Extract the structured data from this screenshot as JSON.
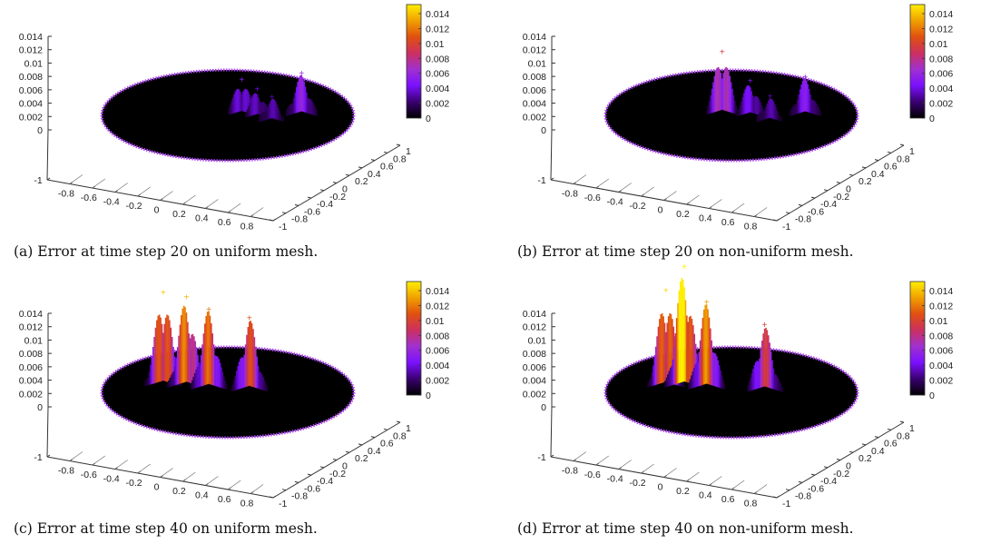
{
  "chart_data": [
    {
      "type": "surface",
      "caption": "(a) Error at time step 20 on uniform mesh.",
      "z_ticks": [
        "0.014",
        "0.012",
        "0.01",
        "0.008",
        "0.006",
        "0.004",
        "0.002",
        "0"
      ],
      "colorbar_ticks": [
        "0.014",
        "0.012",
        "0.01",
        "0.008",
        "0.006",
        "0.004",
        "0.002",
        "0"
      ],
      "x_ticks": [
        "-1",
        "-0.8",
        "-0.6",
        "-0.4",
        "-0.2",
        "0",
        "0.2",
        "0.4",
        "0.6",
        "0.8",
        "1"
      ],
      "y_ticks": [
        "-1",
        "-0.8",
        "-0.6",
        "-0.4",
        "-0.2",
        "0",
        "0.2",
        "0.4",
        "0.6",
        "0.8",
        "1"
      ],
      "zlim": [
        0,
        0.014
      ],
      "xlim": [
        -1,
        1
      ],
      "ylim": [
        -1,
        1
      ],
      "colormap": [
        "#000000",
        "#3a0070",
        "#7a10ff",
        "#a030d0",
        "#cc3060",
        "#e05010",
        "#f0a000",
        "#ffee00"
      ],
      "peaks": [
        {
          "x": 0.05,
          "y": 0.45,
          "z": 0.0045
        },
        {
          "x": 0.2,
          "y": 0.35,
          "z": 0.0035
        },
        {
          "x": 0.55,
          "y": 0.55,
          "z": 0.0055
        },
        {
          "x": 0.35,
          "y": 0.2,
          "z": 0.003
        }
      ]
    },
    {
      "type": "surface",
      "caption": "(b) Error at time step 20 on non-uniform mesh.",
      "z_ticks": [
        "0.014",
        "0.012",
        "0.01",
        "0.008",
        "0.006",
        "0.004",
        "0.002",
        "0"
      ],
      "colorbar_ticks": [
        "0.014",
        "0.012",
        "0.01",
        "0.008",
        "0.006",
        "0.004",
        "0.002",
        "0"
      ],
      "x_ticks": [
        "-1",
        "-0.8",
        "-0.6",
        "-0.4",
        "-0.2",
        "0",
        "0.2",
        "0.4",
        "0.6",
        "0.8",
        "1"
      ],
      "y_ticks": [
        "-1",
        "-0.8",
        "-0.6",
        "-0.4",
        "-0.2",
        "0",
        "0.2",
        "0.4",
        "0.6",
        "0.8",
        "1"
      ],
      "zlim": [
        0,
        0.014
      ],
      "xlim": [
        -1,
        1
      ],
      "ylim": [
        -1,
        1
      ],
      "colormap": [
        "#000000",
        "#3a0070",
        "#7a10ff",
        "#a030d0",
        "#cc3060",
        "#e05010",
        "#f0a000",
        "#ffee00"
      ],
      "peaks": [
        {
          "x": -0.15,
          "y": 0.45,
          "z": 0.0085
        },
        {
          "x": 0.1,
          "y": 0.4,
          "z": 0.0045
        },
        {
          "x": 0.55,
          "y": 0.55,
          "z": 0.005
        },
        {
          "x": 0.3,
          "y": 0.2,
          "z": 0.003
        }
      ]
    },
    {
      "type": "surface",
      "caption": "(c) Error at time step 40 on uniform mesh.",
      "z_ticks": [
        "0.014",
        "0.012",
        "0.01",
        "0.008",
        "0.006",
        "0.004",
        "0.002",
        "0"
      ],
      "colorbar_ticks": [
        "0.014",
        "0.012",
        "0.01",
        "0.008",
        "0.006",
        "0.004",
        "0.002",
        "0"
      ],
      "x_ticks": [
        "-1",
        "-0.8",
        "-0.6",
        "-0.4",
        "-0.2",
        "0",
        "0.2",
        "0.4",
        "0.6",
        "0.8",
        "1"
      ],
      "y_ticks": [
        "-1",
        "-0.8",
        "-0.6",
        "-0.4",
        "-0.2",
        "0",
        "0.2",
        "0.4",
        "0.6",
        "0.8",
        "1"
      ],
      "zlim": [
        0,
        0.014
      ],
      "xlim": [
        -1,
        1
      ],
      "ylim": [
        -1,
        1
      ],
      "colormap": [
        "#000000",
        "#3a0070",
        "#7a10ff",
        "#a030d0",
        "#cc3060",
        "#e05010",
        "#f0a000",
        "#ffee00"
      ],
      "peaks": [
        {
          "x": -0.65,
          "y": 0.6,
          "z": 0.013
        },
        {
          "x": -0.45,
          "y": 0.6,
          "z": 0.0125
        },
        {
          "x": -0.25,
          "y": 0.55,
          "z": 0.011
        },
        {
          "x": 0.1,
          "y": 0.55,
          "z": 0.01
        }
      ]
    },
    {
      "type": "surface",
      "caption": "(d) Error at time step 40 on non-uniform mesh.",
      "z_ticks": [
        "0.014",
        "0.012",
        "0.01",
        "0.008",
        "0.006",
        "0.004",
        "0.002",
        "0"
      ],
      "colorbar_ticks": [
        "0.014",
        "0.012",
        "0.01",
        "0.008",
        "0.006",
        "0.004",
        "0.002",
        "0"
      ],
      "x_ticks": [
        "-1",
        "-0.8",
        "-0.6",
        "-0.4",
        "-0.2",
        "0",
        "0.2",
        "0.4",
        "0.6",
        "0.8",
        "1"
      ],
      "y_ticks": [
        "-1",
        "-0.8",
        "-0.6",
        "-0.4",
        "-0.2",
        "0",
        "0.2",
        "0.4",
        "0.6",
        "0.8",
        "1"
      ],
      "zlim": [
        0,
        0.014
      ],
      "xlim": [
        -1,
        1
      ],
      "ylim": [
        -1,
        1
      ],
      "colormap": [
        "#000000",
        "#3a0070",
        "#7a10ff",
        "#a030d0",
        "#cc3060",
        "#e05010",
        "#f0a000",
        "#ffee00"
      ],
      "peaks": [
        {
          "x": -0.65,
          "y": 0.55,
          "z": 0.0135
        },
        {
          "x": -0.5,
          "y": 0.6,
          "z": 0.017
        },
        {
          "x": -0.3,
          "y": 0.55,
          "z": 0.012
        },
        {
          "x": 0.2,
          "y": 0.55,
          "z": 0.009
        }
      ]
    }
  ]
}
